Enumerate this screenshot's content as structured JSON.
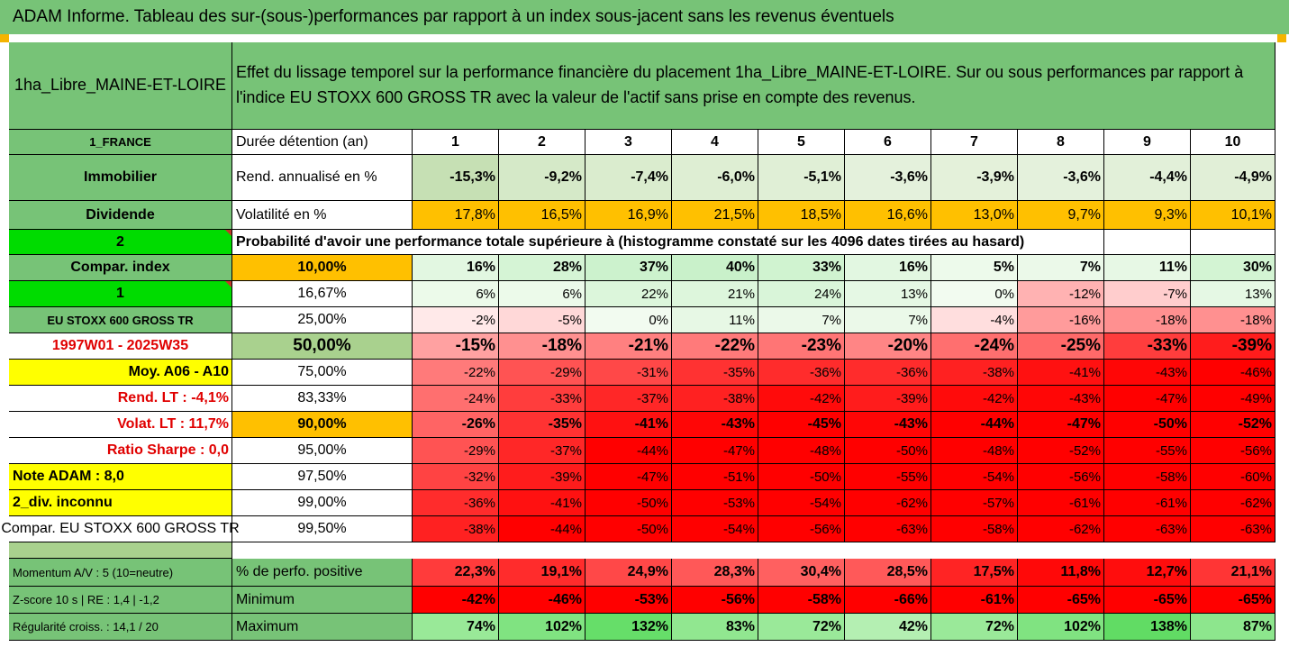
{
  "banner": "ADAM Informe. Tableau des sur-(sous-)performances par rapport à un index sous-jacent sans les revenus éventuels",
  "header": {
    "fund_name": "1ha_Libre_MAINE-ET-LOIRE",
    "description": "Effet du lissage temporel sur la performance financière du placement 1ha_Libre_MAINE-ET-LOIRE. Sur ou sous performances par rapport à l'indice EU STOXX 600 GROSS TR avec la valeur de l'actif sans prise en compte des revenus."
  },
  "side": {
    "country": "1_FRANCE",
    "category": "Immobilier",
    "income_type": "Dividende",
    "code_a": "2",
    "compar_index": "Compar. index",
    "code_b": "1",
    "index_name": "EU STOXX 600 GROSS TR",
    "period": "1997W01 - 2025W35",
    "moy": "Moy. A06 - A10",
    "rend_lt": "Rend. LT :   -4,1%",
    "volat_lt": "Volat. LT :   11,7%",
    "sharpe": "Ratio Sharpe :    0,0",
    "note": "Note ADAM : 8,0",
    "div": "2_div. inconnu",
    "compar_full": "Compar. EU STOXX 600 GROSS TR"
  },
  "labels": {
    "duree": "Durée détention (an)",
    "rend": "Rend. annualisé en %",
    "volat": "Volatilité en %",
    "proba": "Probabilité d'avoir une performance totale supérieure à (histogramme constaté sur les 4096 dates tirées au hasard)",
    "positive": "% de perfo. positive",
    "minimum": "Minimum",
    "maximum": "Maximum"
  },
  "years": [
    "1",
    "2",
    "3",
    "4",
    "5",
    "6",
    "7",
    "8",
    "9",
    "10"
  ],
  "rend": [
    "-15,3%",
    "-9,2%",
    "-7,4%",
    "-6,0%",
    "-5,1%",
    "-3,6%",
    "-3,9%",
    "-3,6%",
    "-4,4%",
    "-4,9%"
  ],
  "volat": [
    "17,8%",
    "16,5%",
    "16,9%",
    "21,5%",
    "18,5%",
    "16,6%",
    "13,0%",
    "9,7%",
    "9,3%",
    "10,1%"
  ],
  "quantiles": [
    {
      "p": "10,00%",
      "v": [
        "16%",
        "28%",
        "37%",
        "40%",
        "33%",
        "16%",
        "5%",
        "7%",
        "11%",
        "30%"
      ]
    },
    {
      "p": "16,67%",
      "v": [
        "6%",
        "6%",
        "22%",
        "21%",
        "24%",
        "13%",
        "0%",
        "-12%",
        "-7%",
        "13%"
      ]
    },
    {
      "p": "25,00%",
      "v": [
        "-2%",
        "-5%",
        "0%",
        "11%",
        "7%",
        "7%",
        "-4%",
        "-16%",
        "-18%",
        "-18%"
      ]
    },
    {
      "p": "50,00%",
      "v": [
        "-15%",
        "-18%",
        "-21%",
        "-22%",
        "-23%",
        "-20%",
        "-24%",
        "-25%",
        "-33%",
        "-39%"
      ]
    },
    {
      "p": "75,00%",
      "v": [
        "-22%",
        "-29%",
        "-31%",
        "-35%",
        "-36%",
        "-36%",
        "-38%",
        "-41%",
        "-43%",
        "-46%"
      ]
    },
    {
      "p": "83,33%",
      "v": [
        "-24%",
        "-33%",
        "-37%",
        "-38%",
        "-42%",
        "-39%",
        "-42%",
        "-43%",
        "-47%",
        "-49%"
      ]
    },
    {
      "p": "90,00%",
      "v": [
        "-26%",
        "-35%",
        "-41%",
        "-43%",
        "-45%",
        "-43%",
        "-44%",
        "-47%",
        "-50%",
        "-52%"
      ]
    },
    {
      "p": "95,00%",
      "v": [
        "-29%",
        "-37%",
        "-44%",
        "-47%",
        "-48%",
        "-50%",
        "-48%",
        "-52%",
        "-55%",
        "-56%"
      ]
    },
    {
      "p": "97,50%",
      "v": [
        "-32%",
        "-39%",
        "-47%",
        "-51%",
        "-50%",
        "-55%",
        "-54%",
        "-56%",
        "-58%",
        "-60%"
      ]
    },
    {
      "p": "99,00%",
      "v": [
        "-36%",
        "-41%",
        "-50%",
        "-53%",
        "-54%",
        "-62%",
        "-57%",
        "-61%",
        "-61%",
        "-62%"
      ]
    },
    {
      "p": "99,50%",
      "v": [
        "-38%",
        "-44%",
        "-50%",
        "-54%",
        "-56%",
        "-63%",
        "-58%",
        "-62%",
        "-63%",
        "-63%"
      ]
    }
  ],
  "stats": {
    "momentum": "Momentum A/V : 5 (10=neutre)",
    "zscore": "Z-score 10 s  | RE : 1,4  | -1,2",
    "regularite": "Régularité croiss. : 14,1 / 20",
    "positive": [
      "22,3%",
      "19,1%",
      "24,9%",
      "28,3%",
      "30,4%",
      "28,5%",
      "17,5%",
      "11,8%",
      "12,7%",
      "21,1%"
    ],
    "minimum": [
      "-42%",
      "-46%",
      "-53%",
      "-56%",
      "-58%",
      "-66%",
      "-61%",
      "-65%",
      "-65%",
      "-65%"
    ],
    "maximum": [
      "74%",
      "102%",
      "132%",
      "83%",
      "72%",
      "42%",
      "72%",
      "102%",
      "138%",
      "87%"
    ]
  },
  "colors": {
    "header_green": "#77c377",
    "mid_green": "#a9d18e",
    "bright_green": "#00dc00",
    "yellow": "#ffff00",
    "orange": "#ffc000",
    "period_red": "#e00000",
    "red": "#ff0000"
  }
}
